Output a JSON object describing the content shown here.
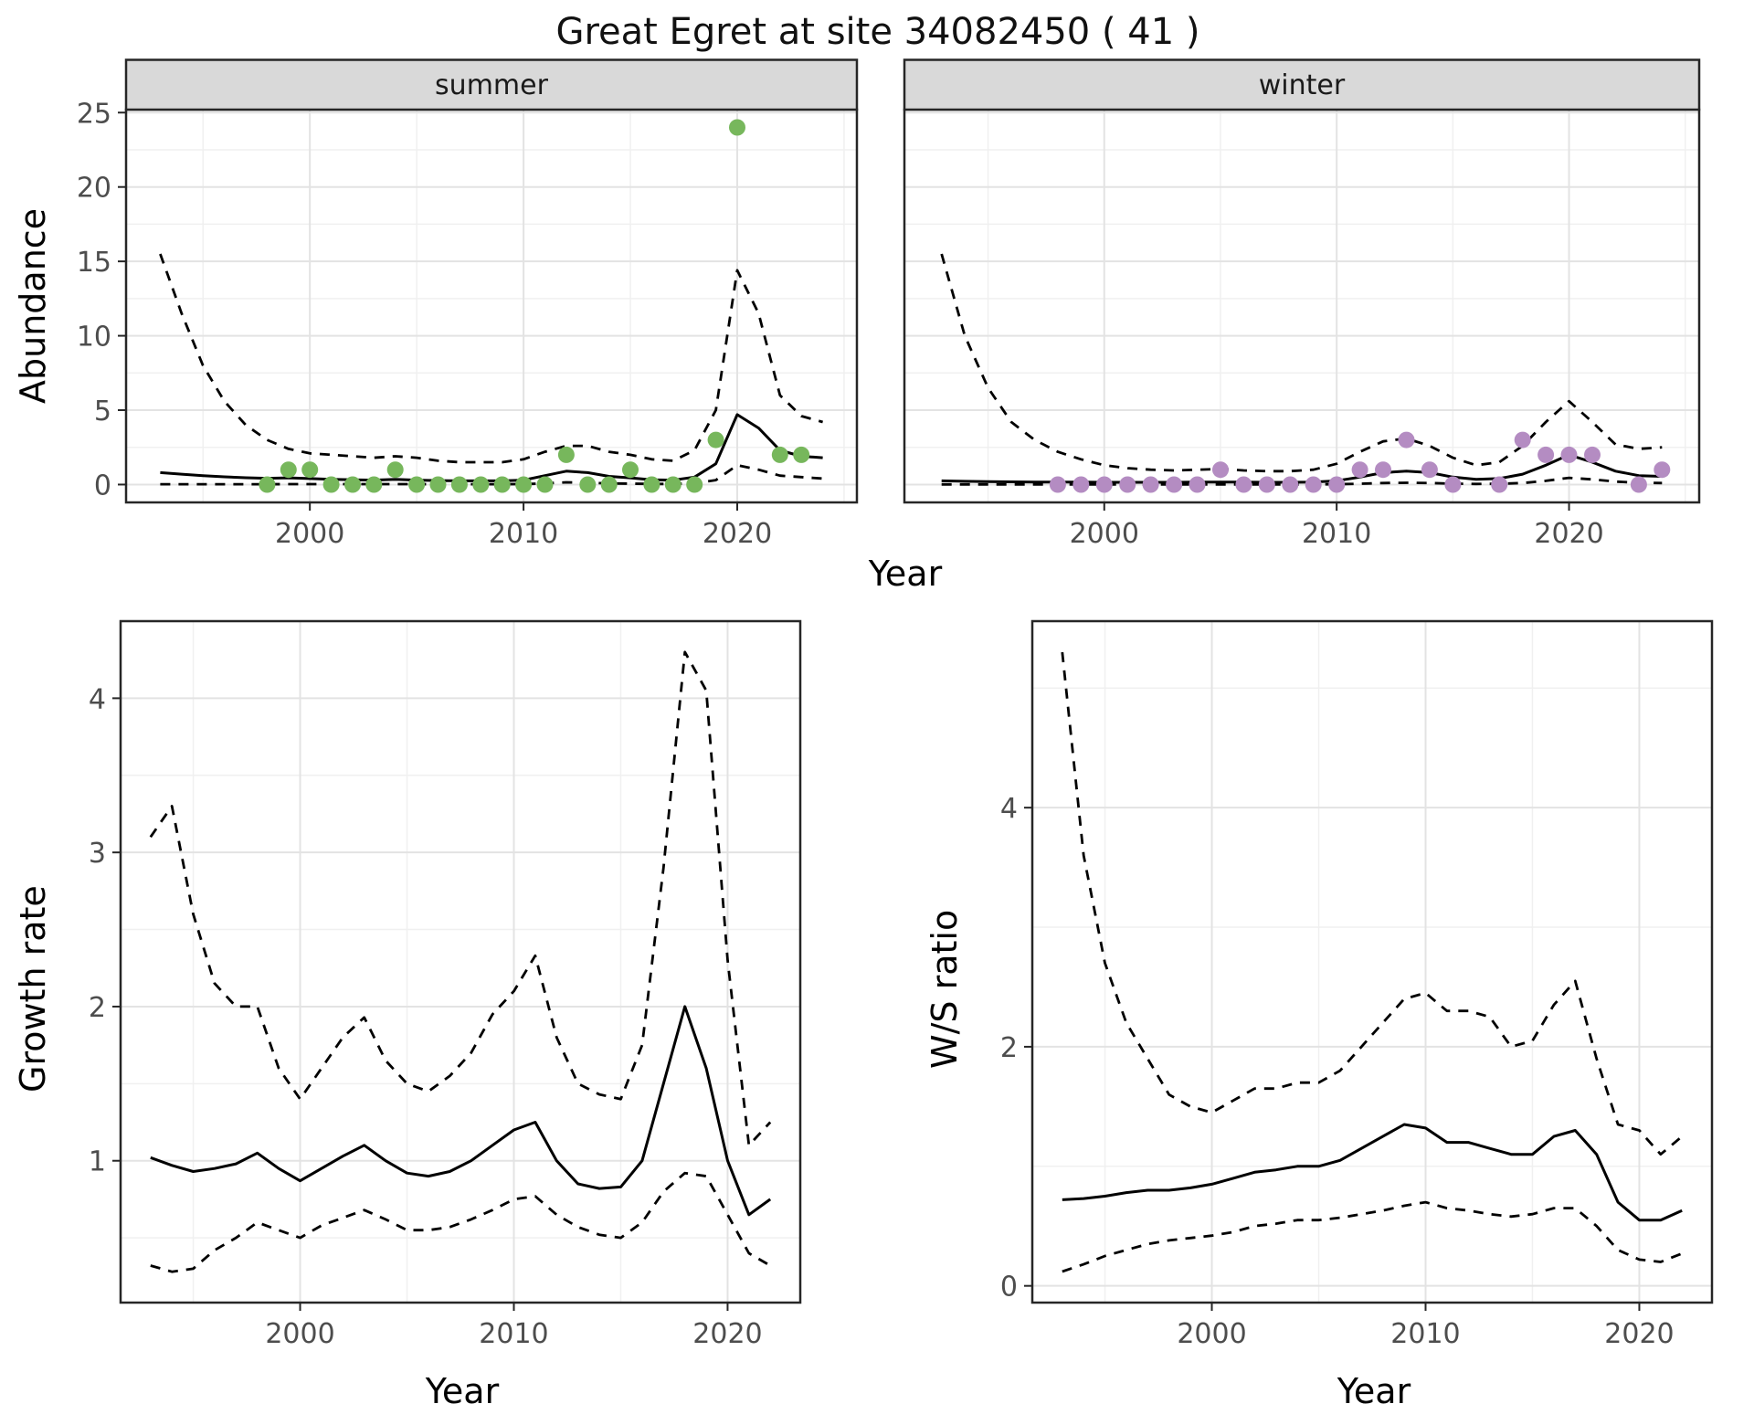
{
  "title": "Great Egret at site 34082450 ( 41 )",
  "colors": {
    "summer_point": "#77b75c",
    "winter_point": "#b48cc2",
    "line": "#000000",
    "grid_major": "#e3e3e3",
    "grid_minor": "#f0f0f0",
    "strip_fill": "#d9d9d9",
    "border": "#262626"
  },
  "chart_data": [
    {
      "type": "line",
      "name": "abundance-summer",
      "facet_label": "summer",
      "xlabel": "Year",
      "ylabel": "Abundance",
      "xlim": [
        1991.4,
        2025.6
      ],
      "ylim": [
        -1.2,
        25.2
      ],
      "xticks": [
        2000,
        2010,
        2020
      ],
      "yticks": [
        0,
        5,
        10,
        15,
        20,
        25
      ],
      "grid": true,
      "legend": "none",
      "points": {
        "color": "#77b75c",
        "x": [
          1998,
          1999,
          2000,
          2001,
          2002,
          2003,
          2004,
          2005,
          2006,
          2007,
          2008,
          2009,
          2010,
          2011,
          2012,
          2013,
          2014,
          2015,
          2016,
          2017,
          2018,
          2019,
          2020,
          2022,
          2023
        ],
        "y": [
          0,
          1,
          1,
          0,
          0,
          0,
          1,
          0,
          0,
          0,
          0,
          0,
          0,
          0,
          2,
          0,
          0,
          1,
          0,
          0,
          0,
          3,
          24,
          2,
          2
        ]
      },
      "series": [
        {
          "name": "median",
          "style": "solid",
          "x": [
            1993,
            1994,
            1995,
            1996,
            1997,
            1998,
            1999,
            2000,
            2001,
            2002,
            2003,
            2004,
            2005,
            2006,
            2007,
            2008,
            2009,
            2010,
            2011,
            2012,
            2013,
            2014,
            2015,
            2016,
            2017,
            2018,
            2019,
            2020,
            2021,
            2022,
            2023,
            2024
          ],
          "y": [
            0.8,
            0.7,
            0.6,
            0.52,
            0.46,
            0.42,
            0.45,
            0.4,
            0.35,
            0.32,
            0.3,
            0.35,
            0.3,
            0.27,
            0.25,
            0.25,
            0.25,
            0.3,
            0.6,
            0.9,
            0.8,
            0.55,
            0.45,
            0.32,
            0.3,
            0.5,
            1.4,
            4.7,
            3.8,
            2.3,
            1.9,
            1.8
          ]
        },
        {
          "name": "upper-ci",
          "style": "dashed",
          "x": [
            1993,
            1994,
            1995,
            1996,
            1997,
            1998,
            1999,
            2000,
            2001,
            2002,
            2003,
            2004,
            2005,
            2006,
            2007,
            2008,
            2009,
            2010,
            2011,
            2012,
            2013,
            2014,
            2015,
            2016,
            2017,
            2018,
            2019,
            2020,
            2021,
            2022,
            2023,
            2024
          ],
          "y": [
            15.5,
            11.5,
            8.0,
            5.6,
            4.0,
            3.0,
            2.4,
            2.1,
            2.0,
            1.9,
            1.8,
            1.9,
            1.8,
            1.6,
            1.5,
            1.5,
            1.5,
            1.7,
            2.2,
            2.6,
            2.6,
            2.2,
            2.0,
            1.7,
            1.6,
            2.3,
            5.0,
            14.4,
            11.5,
            6.0,
            4.6,
            4.2
          ]
        },
        {
          "name": "lower-ci",
          "style": "dashed",
          "x": [
            1993,
            1994,
            1995,
            1996,
            1997,
            1998,
            1999,
            2000,
            2001,
            2002,
            2003,
            2004,
            2005,
            2006,
            2007,
            2008,
            2009,
            2010,
            2011,
            2012,
            2013,
            2014,
            2015,
            2016,
            2017,
            2018,
            2019,
            2020,
            2021,
            2022,
            2023,
            2024
          ],
          "y": [
            0.02,
            0.02,
            0.02,
            0.02,
            0.02,
            0.02,
            0.03,
            0.03,
            0.03,
            0.03,
            0.03,
            0.03,
            0.03,
            0.02,
            0.02,
            0.02,
            0.02,
            0.03,
            0.08,
            0.15,
            0.12,
            0.08,
            0.06,
            0.04,
            0.04,
            0.08,
            0.3,
            1.3,
            1.0,
            0.6,
            0.5,
            0.4
          ]
        }
      ]
    },
    {
      "type": "line",
      "name": "abundance-winter",
      "facet_label": "winter",
      "xlabel": "Year",
      "ylabel": "Abundance",
      "xlim": [
        1991.4,
        2025.6
      ],
      "ylim": [
        -1.2,
        25.2
      ],
      "xticks": [
        2000,
        2010,
        2020
      ],
      "yticks": [
        0,
        5,
        10,
        15,
        20,
        25
      ],
      "grid": true,
      "legend": "none",
      "points": {
        "color": "#b48cc2",
        "x": [
          1998,
          1999,
          2000,
          2001,
          2002,
          2003,
          2004,
          2005,
          2006,
          2007,
          2008,
          2009,
          2010,
          2011,
          2012,
          2013,
          2014,
          2015,
          2017,
          2018,
          2019,
          2020,
          2021,
          2023,
          2024
        ],
        "y": [
          0,
          0,
          0,
          0,
          0,
          0,
          0,
          1,
          0,
          0,
          0,
          0,
          0,
          1,
          1,
          3,
          1,
          0,
          0,
          3,
          2,
          2,
          2,
          0,
          1
        ]
      },
      "series": [
        {
          "name": "median",
          "style": "solid",
          "x": [
            1993,
            1994,
            1995,
            1996,
            1997,
            1998,
            1999,
            2000,
            2001,
            2002,
            2003,
            2004,
            2005,
            2006,
            2007,
            2008,
            2009,
            2010,
            2011,
            2012,
            2013,
            2014,
            2015,
            2016,
            2017,
            2018,
            2019,
            2020,
            2021,
            2022,
            2023,
            2024
          ],
          "y": [
            0.25,
            0.22,
            0.2,
            0.18,
            0.17,
            0.16,
            0.16,
            0.15,
            0.15,
            0.15,
            0.15,
            0.16,
            0.17,
            0.16,
            0.15,
            0.15,
            0.16,
            0.25,
            0.5,
            0.8,
            0.9,
            0.8,
            0.5,
            0.35,
            0.4,
            0.7,
            1.3,
            2.0,
            1.5,
            0.9,
            0.6,
            0.55
          ]
        },
        {
          "name": "upper-ci",
          "style": "dashed",
          "x": [
            1993,
            1994,
            1995,
            1996,
            1997,
            1998,
            1999,
            2000,
            2001,
            2002,
            2003,
            2004,
            2005,
            2006,
            2007,
            2008,
            2009,
            2010,
            2011,
            2012,
            2013,
            2014,
            2015,
            2016,
            2017,
            2018,
            2019,
            2020,
            2021,
            2022,
            2023,
            2024
          ],
          "y": [
            15.5,
            10.0,
            6.5,
            4.2,
            3.0,
            2.2,
            1.7,
            1.3,
            1.1,
            1.0,
            0.95,
            1.0,
            1.05,
            0.95,
            0.9,
            0.9,
            1.0,
            1.4,
            2.2,
            2.9,
            3.1,
            2.6,
            1.8,
            1.3,
            1.5,
            2.6,
            4.2,
            5.6,
            4.2,
            2.7,
            2.4,
            2.5
          ]
        },
        {
          "name": "lower-ci",
          "style": "dashed",
          "x": [
            1993,
            1994,
            1995,
            1996,
            1997,
            1998,
            1999,
            2000,
            2001,
            2002,
            2003,
            2004,
            2005,
            2006,
            2007,
            2008,
            2009,
            2010,
            2011,
            2012,
            2013,
            2014,
            2015,
            2016,
            2017,
            2018,
            2019,
            2020,
            2021,
            2022,
            2023,
            2024
          ],
          "y": [
            0.01,
            0.01,
            0.01,
            0.01,
            0.01,
            0.01,
            0.01,
            0.01,
            0.01,
            0.01,
            0.01,
            0.01,
            0.01,
            0.01,
            0.01,
            0.01,
            0.01,
            0.02,
            0.05,
            0.1,
            0.12,
            0.1,
            0.06,
            0.04,
            0.05,
            0.1,
            0.25,
            0.45,
            0.35,
            0.2,
            0.12,
            0.1
          ]
        }
      ]
    },
    {
      "type": "line",
      "name": "growth-rate",
      "facet_label": "",
      "xlabel": "Year",
      "ylabel": "Growth rate",
      "xlim": [
        1991.6,
        2023.4
      ],
      "ylim": [
        0.08,
        4.5
      ],
      "xticks": [
        2000,
        2010,
        2020
      ],
      "yticks": [
        1,
        2,
        3,
        4
      ],
      "grid": true,
      "legend": "none",
      "points": null,
      "series": [
        {
          "name": "median",
          "style": "solid",
          "x": [
            1993,
            1994,
            1995,
            1996,
            1997,
            1998,
            1999,
            2000,
            2001,
            2002,
            2003,
            2004,
            2005,
            2006,
            2007,
            2008,
            2009,
            2010,
            2011,
            2012,
            2013,
            2014,
            2015,
            2016,
            2017,
            2018,
            2019,
            2020,
            2021,
            2022
          ],
          "y": [
            1.02,
            0.97,
            0.93,
            0.95,
            0.98,
            1.05,
            0.95,
            0.87,
            0.95,
            1.03,
            1.1,
            1.0,
            0.92,
            0.9,
            0.93,
            1.0,
            1.1,
            1.2,
            1.25,
            1.0,
            0.85,
            0.82,
            0.83,
            1.0,
            1.5,
            2.0,
            1.6,
            1.0,
            0.65,
            0.75
          ]
        },
        {
          "name": "upper-ci",
          "style": "dashed",
          "x": [
            1993,
            1994,
            1995,
            1996,
            1997,
            1998,
            1999,
            2000,
            2001,
            2002,
            2003,
            2004,
            2005,
            2006,
            2007,
            2008,
            2009,
            2010,
            2011,
            2012,
            2013,
            2014,
            2015,
            2016,
            2017,
            2018,
            2019,
            2020,
            2021,
            2022
          ],
          "y": [
            3.1,
            3.3,
            2.6,
            2.15,
            2.0,
            2.0,
            1.6,
            1.4,
            1.6,
            1.8,
            1.93,
            1.65,
            1.5,
            1.45,
            1.55,
            1.7,
            1.95,
            2.1,
            2.33,
            1.8,
            1.5,
            1.43,
            1.4,
            1.75,
            2.9,
            4.3,
            4.05,
            2.3,
            1.1,
            1.25
          ]
        },
        {
          "name": "lower-ci",
          "style": "dashed",
          "x": [
            1993,
            1994,
            1995,
            1996,
            1997,
            1998,
            1999,
            2000,
            2001,
            2002,
            2003,
            2004,
            2005,
            2006,
            2007,
            2008,
            2009,
            2010,
            2011,
            2012,
            2013,
            2014,
            2015,
            2016,
            2017,
            2018,
            2019,
            2020,
            2021,
            2022
          ],
          "y": [
            0.32,
            0.28,
            0.3,
            0.42,
            0.5,
            0.6,
            0.55,
            0.5,
            0.58,
            0.63,
            0.68,
            0.62,
            0.55,
            0.55,
            0.57,
            0.62,
            0.68,
            0.75,
            0.77,
            0.65,
            0.57,
            0.52,
            0.5,
            0.6,
            0.8,
            0.92,
            0.9,
            0.65,
            0.4,
            0.32
          ]
        }
      ]
    },
    {
      "type": "line",
      "name": "ws-ratio",
      "facet_label": "",
      "xlabel": "Year",
      "ylabel": "W/S ratio",
      "xlim": [
        1991.6,
        2023.4
      ],
      "ylim": [
        -0.14,
        5.56
      ],
      "xticks": [
        2000,
        2010,
        2020
      ],
      "yticks": [
        0,
        2,
        4
      ],
      "grid": true,
      "legend": "none",
      "points": null,
      "series": [
        {
          "name": "median",
          "style": "solid",
          "x": [
            1993,
            1994,
            1995,
            1996,
            1997,
            1998,
            1999,
            2000,
            2001,
            2002,
            2003,
            2004,
            2005,
            2006,
            2007,
            2008,
            2009,
            2010,
            2011,
            2012,
            2013,
            2014,
            2015,
            2016,
            2017,
            2018,
            2019,
            2020,
            2021,
            2022
          ],
          "y": [
            0.72,
            0.73,
            0.75,
            0.78,
            0.8,
            0.8,
            0.82,
            0.85,
            0.9,
            0.95,
            0.97,
            1.0,
            1.0,
            1.05,
            1.15,
            1.25,
            1.35,
            1.32,
            1.2,
            1.2,
            1.15,
            1.1,
            1.1,
            1.25,
            1.3,
            1.1,
            0.7,
            0.55,
            0.55,
            0.63
          ]
        },
        {
          "name": "upper-ci",
          "style": "dashed",
          "x": [
            1993,
            1994,
            1995,
            1996,
            1997,
            1998,
            1999,
            2000,
            2001,
            2002,
            2003,
            2004,
            2005,
            2006,
            2007,
            2008,
            2009,
            2010,
            2011,
            2012,
            2013,
            2014,
            2015,
            2016,
            2017,
            2018,
            2019,
            2020,
            2021,
            2022
          ],
          "y": [
            5.3,
            3.6,
            2.7,
            2.2,
            1.9,
            1.6,
            1.5,
            1.45,
            1.55,
            1.65,
            1.65,
            1.7,
            1.7,
            1.8,
            2.0,
            2.2,
            2.4,
            2.45,
            2.3,
            2.3,
            2.25,
            2.0,
            2.05,
            2.35,
            2.55,
            1.9,
            1.35,
            1.3,
            1.1,
            1.25
          ]
        },
        {
          "name": "lower-ci",
          "style": "dashed",
          "x": [
            1993,
            1994,
            1995,
            1996,
            1997,
            1998,
            1999,
            2000,
            2001,
            2002,
            2003,
            2004,
            2005,
            2006,
            2007,
            2008,
            2009,
            2010,
            2011,
            2012,
            2013,
            2014,
            2015,
            2016,
            2017,
            2018,
            2019,
            2020,
            2021,
            2022
          ],
          "y": [
            0.12,
            0.18,
            0.25,
            0.3,
            0.35,
            0.38,
            0.4,
            0.42,
            0.45,
            0.5,
            0.52,
            0.55,
            0.55,
            0.57,
            0.6,
            0.63,
            0.67,
            0.7,
            0.65,
            0.63,
            0.6,
            0.58,
            0.6,
            0.65,
            0.65,
            0.5,
            0.3,
            0.22,
            0.2,
            0.27
          ]
        }
      ]
    }
  ]
}
